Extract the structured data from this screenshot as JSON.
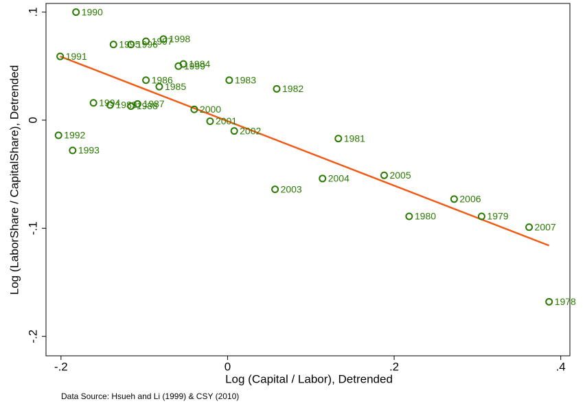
{
  "chart_data": {
    "type": "scatter",
    "x_label": "Log (Capital / Labor), Detrended",
    "y_label": "Log (LaborShare / CapitalShare), Detrended",
    "note": "Data Source: Hsueh and Li (1999) & CSY (2010)",
    "color": "#2a7a00",
    "fit_color": "#f05a14",
    "x": [
      -0.182,
      -0.201,
      -0.203,
      -0.186,
      -0.161,
      -0.137,
      -0.116,
      -0.098,
      -0.077,
      -0.053,
      -0.059,
      -0.098,
      -0.082,
      0.002,
      0.059,
      -0.141,
      -0.116,
      -0.108,
      -0.04,
      -0.021,
      0.008,
      0.133,
      0.188,
      0.114,
      0.057,
      0.272,
      0.218,
      0.305,
      0.362,
      0.386
    ],
    "values": [
      0.1,
      0.059,
      -0.014,
      -0.028,
      0.016,
      0.07,
      0.07,
      0.073,
      0.075,
      0.052,
      0.05,
      0.037,
      0.031,
      0.037,
      0.029,
      0.014,
      0.013,
      0.015,
      0.01,
      -0.001,
      -0.01,
      -0.017,
      -0.051,
      -0.054,
      -0.064,
      -0.073,
      -0.089,
      -0.089,
      -0.099,
      -0.168
    ],
    "point_labels": [
      "1990",
      "1991",
      "1992",
      "1993",
      "1994",
      "1995",
      "1996",
      "1997",
      "1998",
      "1984",
      "1999",
      "1986",
      "1985",
      "1983",
      "1982",
      "1989",
      "1988",
      "1987",
      "2000",
      "2001",
      "2002",
      "1981",
      "2005",
      "2004",
      "2003",
      "2006",
      "1980",
      "1979",
      "2007",
      "1978"
    ],
    "fit": {
      "x": [
        -0.201,
        0.386
      ],
      "y": [
        0.059,
        -0.116
      ]
    },
    "xlim": [
      -0.218,
      0.411
    ],
    "ylim": [
      -0.218,
      0.108
    ],
    "xticks": [
      {
        "value": -0.2,
        "label": "-.2"
      },
      0,
      {
        "value": 0.2,
        "label": ".2"
      },
      {
        "value": 0.4,
        "label": ".4"
      }
    ],
    "yticks": [
      {
        "value": -0.2,
        "label": "-.2"
      },
      {
        "value": -0.1,
        "label": "-.1"
      },
      0,
      {
        "value": 0.1,
        "label": ".1"
      }
    ]
  }
}
